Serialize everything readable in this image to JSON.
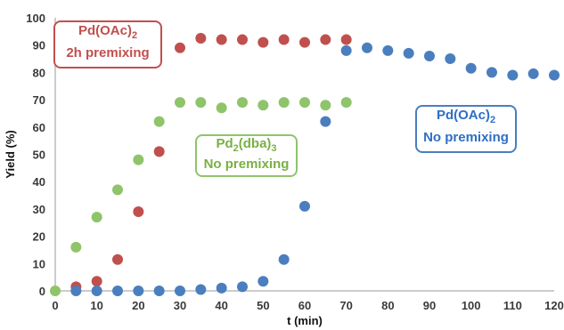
{
  "chart_data": {
    "type": "scatter",
    "xlabel": "t (min)",
    "ylabel": "Yield (%)",
    "xlim": [
      0,
      120
    ],
    "ylim": [
      0,
      100
    ],
    "xticks": [
      0,
      10,
      20,
      30,
      40,
      50,
      60,
      70,
      80,
      90,
      100,
      110,
      120
    ],
    "yticks": [
      0,
      10,
      20,
      30,
      40,
      50,
      60,
      70,
      80,
      90,
      100
    ],
    "grid": false,
    "series": [
      {
        "name": "Pd(OAc)2 2h premixing",
        "color": "#c0504d",
        "label": {
          "line1_main": "Pd(OAc)",
          "line1_sub": "2",
          "line2": "2h premixing"
        },
        "x": [
          5,
          10,
          15,
          20,
          25,
          30,
          35,
          40,
          45,
          50,
          55,
          60,
          65,
          70
        ],
        "y": [
          1.5,
          3.5,
          11.5,
          29,
          51,
          89,
          92.5,
          92,
          92,
          91,
          92,
          91,
          92,
          92
        ]
      },
      {
        "name": "Pd2(dba)3 No premixing",
        "color": "#8fc46a",
        "label": {
          "line1_main": "Pd",
          "line1_sub": "2",
          "line1_mid": "(dba)",
          "line1_sub2": "3",
          "line2": "No premixing"
        },
        "x": [
          0,
          5,
          10,
          15,
          20,
          25,
          30,
          35,
          40,
          45,
          50,
          55,
          60,
          65,
          70
        ],
        "y": [
          0,
          16,
          27,
          37,
          48,
          62,
          69,
          69,
          67,
          69,
          68,
          69,
          69,
          68,
          69
        ]
      },
      {
        "name": "Pd(OAc)2 No premixing",
        "color": "#4a7ebf",
        "label": {
          "line1_main": "Pd(OAc)",
          "line1_sub": "2",
          "line2": "No premixing"
        },
        "x": [
          5,
          10,
          15,
          20,
          25,
          30,
          35,
          40,
          45,
          50,
          55,
          60,
          65,
          70,
          75,
          80,
          85,
          90,
          95,
          100,
          105,
          110,
          115,
          120
        ],
        "y": [
          0,
          0,
          0,
          0,
          0,
          0,
          0.5,
          1,
          1.5,
          3.5,
          11.5,
          31,
          62,
          88,
          89,
          88,
          87,
          86,
          85,
          81.5,
          80,
          79,
          79.5,
          79
        ]
      }
    ]
  }
}
